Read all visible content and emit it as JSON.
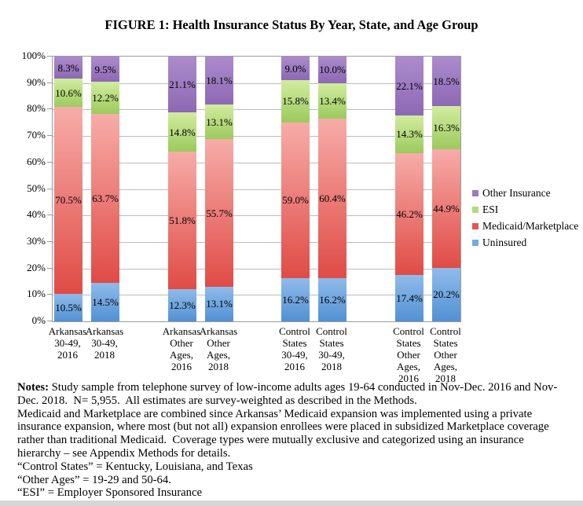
{
  "title": "FIGURE 1: Health Insurance Status By Year, State, and Age Group",
  "chart_data": {
    "type": "bar",
    "stacked": true,
    "title": "FIGURE 1: Health Insurance Status By Year, State, and Age Group",
    "ylim": [
      0,
      100
    ],
    "y_ticks": [
      0,
      10,
      20,
      30,
      40,
      50,
      60,
      70,
      80,
      90,
      100
    ],
    "y_tick_suffix": "%",
    "grid": true,
    "legend_position": "right",
    "data_label_suffix": "%",
    "categories": [
      "Arkansas\n30-49,\n2016",
      "Arkansas\n30-49,\n2018",
      "Arkansas\nOther\nAges,\n2016",
      "Arkansas\nOther\nAges,\n2018",
      "Control\nStates\n30-49,\n2016",
      "Control\nStates\n30-49,\n2018",
      "Control\nStates\nOther\nAges,\n2016",
      "Control\nStates\nOther\nAges,\n2018"
    ],
    "series": [
      {
        "name": "Uninsured",
        "values": [
          10.5,
          14.5,
          12.3,
          13.1,
          16.2,
          16.2,
          17.4,
          20.2
        ],
        "color_top": "#8fbbea",
        "color_bottom": "#5291d4",
        "legend_color": "#74a9e2"
      },
      {
        "name": "Medicaid/Marketplace",
        "values": [
          70.5,
          63.7,
          51.8,
          55.7,
          59.0,
          60.4,
          46.2,
          44.9
        ],
        "color_top": "#f7aca8",
        "color_bottom": "#e04b46",
        "legend_color": "#e35752"
      },
      {
        "name": "ESI",
        "values": [
          10.6,
          12.2,
          14.8,
          13.1,
          15.8,
          13.4,
          14.3,
          16.3
        ],
        "color_top": "#d2ec9f",
        "color_bottom": "#9cca5d",
        "legend_color": "#b4db77"
      },
      {
        "name": "Other Insurance",
        "values": [
          8.3,
          9.5,
          21.1,
          18.1,
          9.0,
          10.0,
          22.1,
          18.5
        ],
        "color_top": "#ac8bcc",
        "color_bottom": "#8d69b4",
        "legend_color": "#9c7ac1"
      }
    ],
    "legend": [
      "Other Insurance",
      "ESI",
      "Medicaid/Marketplace",
      "Uninsured"
    ]
  },
  "notes": {
    "bold_label": "Notes:",
    "lines": [
      " Study sample from telephone survey of low-income adults ages 19-64 conducted in Nov-Dec. 2016 and Nov-",
      "Dec. 2018.  N= 5,955.  All estimates are survey-weighted as described in the Methods.",
      "Medicaid and Marketplace are combined since Arkansas’ Medicaid expansion was implemented using a private",
      "insurance expansion, where most (but not all) expansion enrollees were placed in subsidized Marketplace coverage",
      "rather than traditional Medicaid.  Coverage types were mutually exclusive and categorized using an insurance",
      "hierarchy – see Appendix Methods for details.",
      "“Control States” = Kentucky, Louisiana, and Texas",
      "“Other Ages” = 19-29 and 50-64.",
      "“ESI” = Employer Sponsored Insurance"
    ]
  },
  "colors": {
    "grid": "#bcbcbc",
    "plot_border": "#9b9b9b",
    "footer_strip": "#d6d6d6",
    "text": "#000000"
  }
}
